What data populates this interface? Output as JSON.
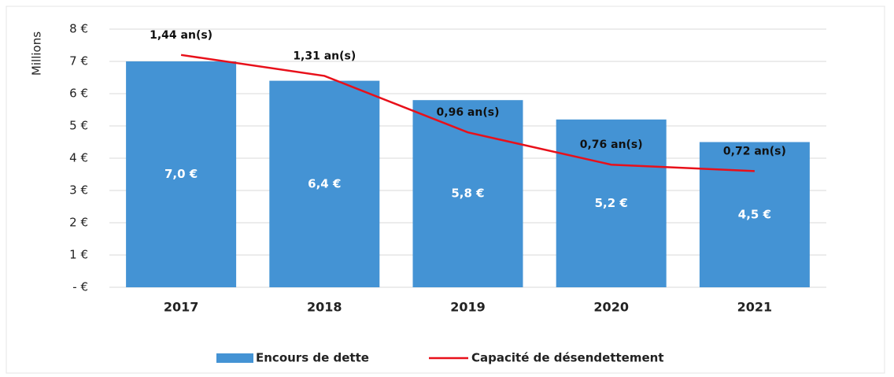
{
  "chart_data": {
    "type": "bar",
    "y_label": "Millions",
    "categories": [
      "2017",
      "2018",
      "2019",
      "2020",
      "2021"
    ],
    "series": [
      {
        "name": "Encours de dette",
        "type": "bar",
        "color": "#4493d4",
        "values": [
          7.0,
          6.4,
          5.8,
          5.2,
          4.5
        ],
        "value_labels": [
          "7,0 €",
          "6,4 €",
          "5,8 €",
          "5,2 €",
          "4,5 €"
        ]
      },
      {
        "name": "Capacité de désendettement",
        "type": "line",
        "axis": "y2",
        "color": "#e8101a",
        "values": [
          1.44,
          1.31,
          0.96,
          0.76,
          0.72
        ],
        "value_labels": [
          "1,44 an(s)",
          "1,31 an(s)",
          "0,96 an(s)",
          "0,76 an(s)",
          "0,72 an(s)"
        ]
      }
    ],
    "ylim": [
      0,
      8
    ],
    "yticks": [
      {
        "value": 0,
        "label": "-  €"
      },
      {
        "value": 1,
        "label": "1 €"
      },
      {
        "value": 2,
        "label": "2 €"
      },
      {
        "value": 3,
        "label": "3 €"
      },
      {
        "value": 4,
        "label": "4 €"
      },
      {
        "value": 5,
        "label": "5 €"
      },
      {
        "value": 6,
        "label": "6 €"
      },
      {
        "value": 7,
        "label": "7 €"
      },
      {
        "value": 8,
        "label": "8 €"
      }
    ],
    "y2lim": [
      0,
      1.6
    ],
    "grid": true,
    "legend": "bottom"
  }
}
